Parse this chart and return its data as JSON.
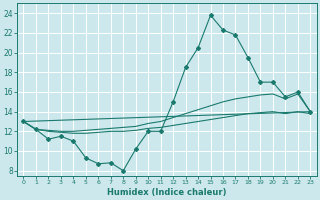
{
  "xlabel": "Humidex (Indice chaleur)",
  "xlim": [
    -0.5,
    23.5
  ],
  "ylim": [
    7.5,
    25
  ],
  "yticks": [
    8,
    10,
    12,
    14,
    16,
    18,
    20,
    22,
    24
  ],
  "xticks": [
    0,
    1,
    2,
    3,
    4,
    5,
    6,
    7,
    8,
    9,
    10,
    11,
    12,
    13,
    14,
    15,
    16,
    17,
    18,
    19,
    20,
    21,
    22,
    23
  ],
  "bg_color": "#cde8ed",
  "grid_color": "#ffffff",
  "line_color": "#1a7a6e",
  "line1_y": [
    13.0,
    12.2,
    11.2,
    11.5,
    11.0,
    9.3,
    8.7,
    8.8,
    8.0,
    10.2,
    12.0,
    12.0,
    15.0,
    18.5,
    20.5,
    23.8,
    22.3,
    21.8,
    19.5,
    17.0,
    17.0,
    15.5,
    16.0,
    14.0
  ],
  "line2_y": [
    13.0,
    12.2,
    12.1,
    12.0,
    12.0,
    12.1,
    12.2,
    12.3,
    12.4,
    12.5,
    12.8,
    13.0,
    13.4,
    13.8,
    14.2,
    14.6,
    15.0,
    15.3,
    15.5,
    15.7,
    15.8,
    15.3,
    15.8,
    14.0
  ],
  "line3_y": [
    13.0,
    12.2,
    12.0,
    11.9,
    11.8,
    11.8,
    11.9,
    12.0,
    12.0,
    12.1,
    12.3,
    12.4,
    12.6,
    12.8,
    13.0,
    13.2,
    13.4,
    13.6,
    13.8,
    13.9,
    14.0,
    13.8,
    14.0,
    13.8
  ],
  "line4_y": [
    13.0,
    14.0
  ]
}
